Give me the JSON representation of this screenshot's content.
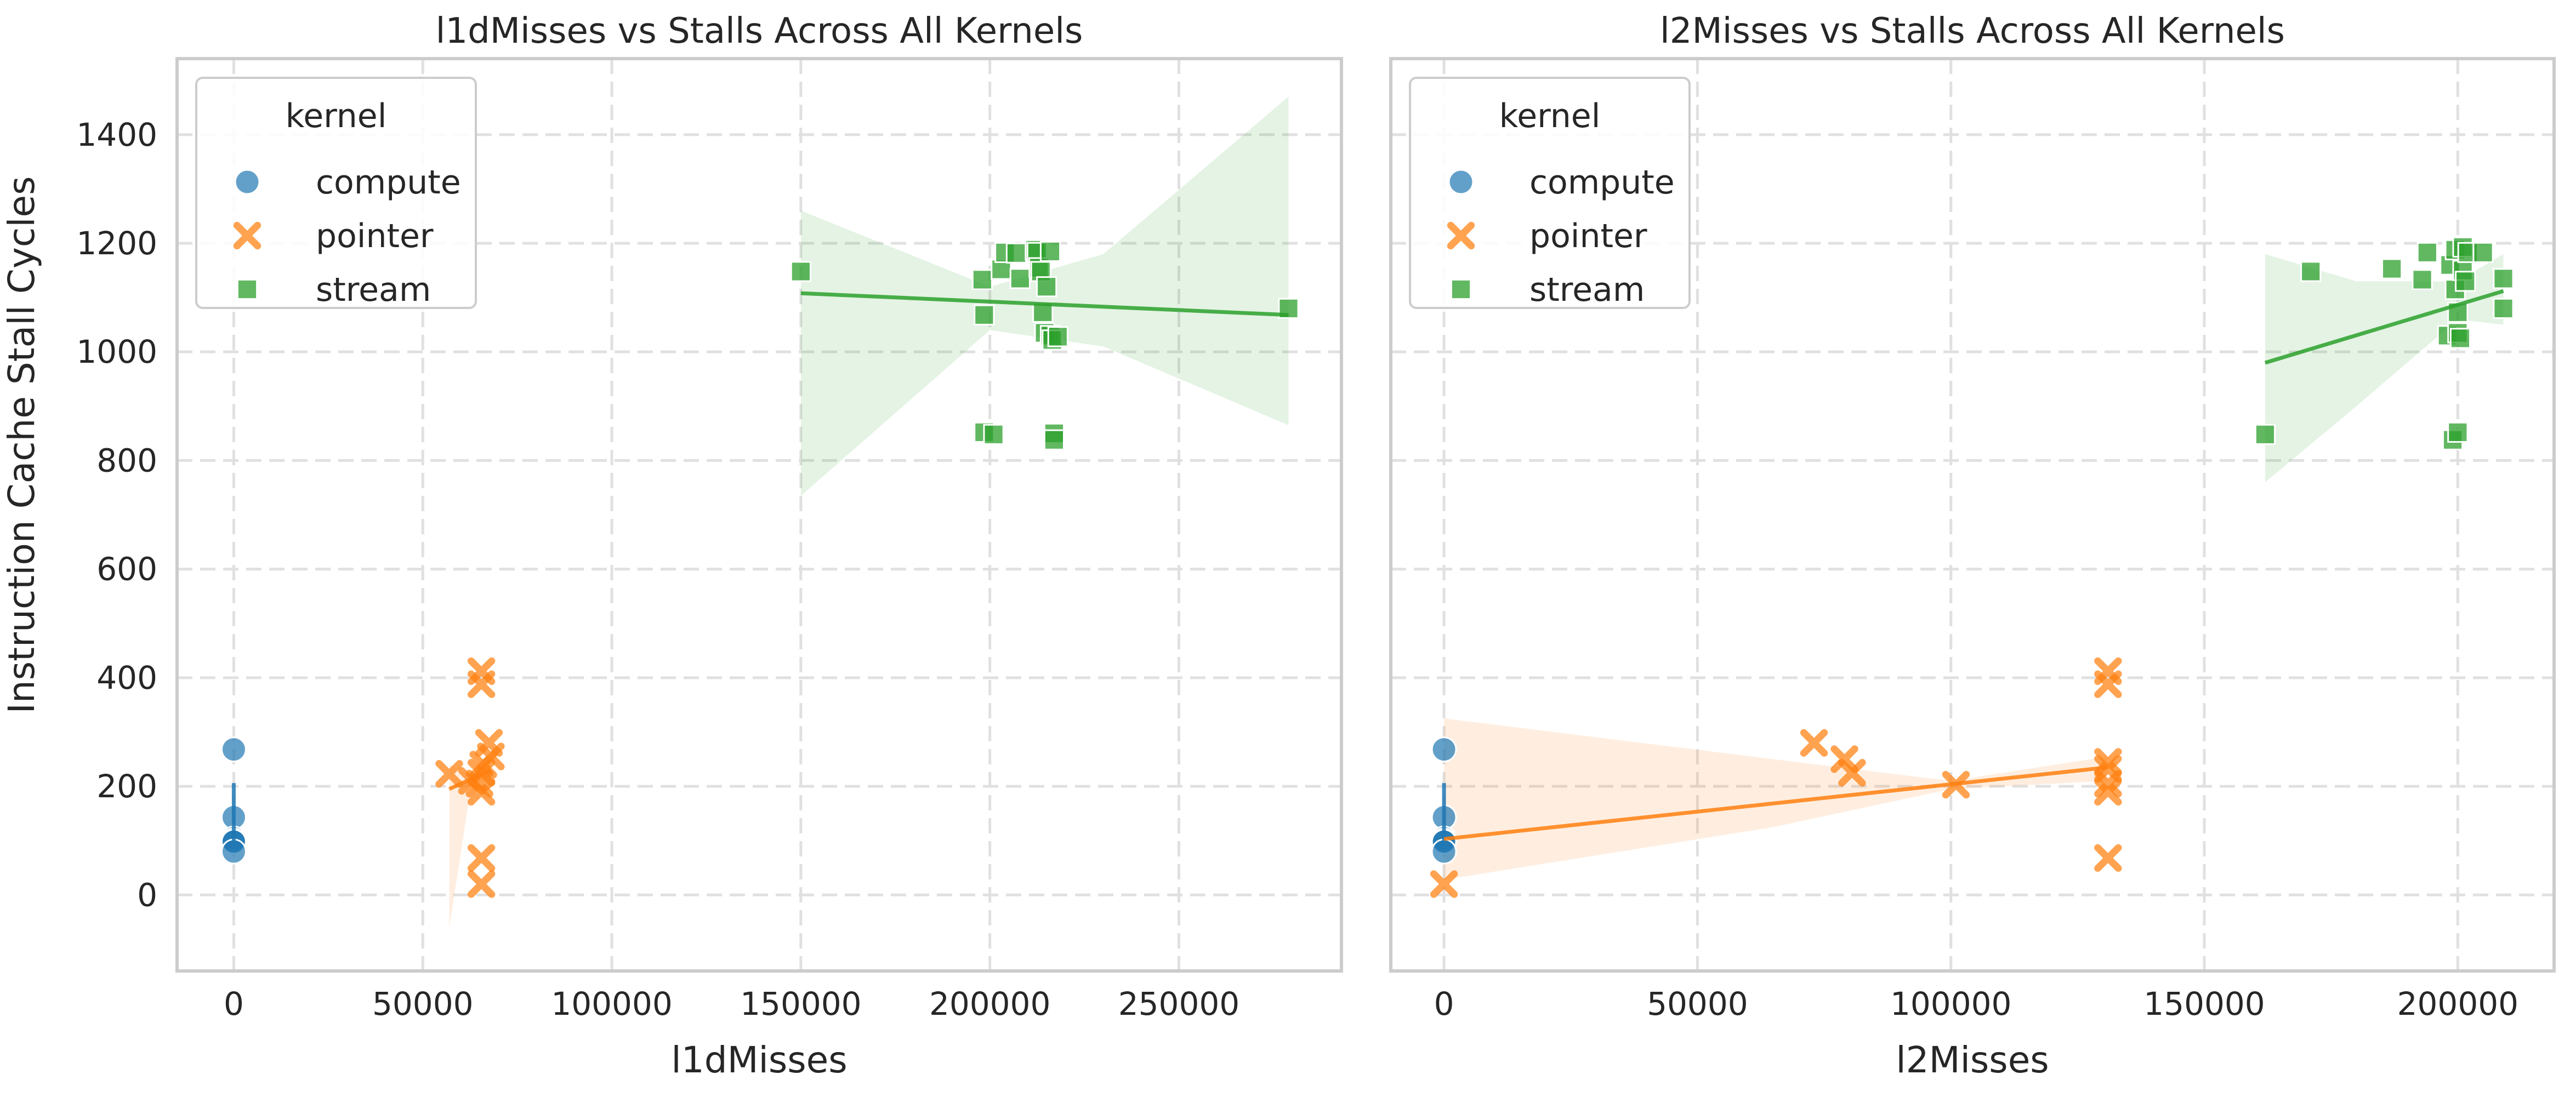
{
  "chart_data": [
    {
      "type": "scatter",
      "title": "l1dMisses vs Stalls Across All Kernels",
      "xlabel": "l1dMisses",
      "ylabel": "Instruction Cache Stall Cycles",
      "xlim": [
        -15000,
        293000
      ],
      "ylim": [
        -140,
        1540
      ],
      "xticks": [
        0,
        50000,
        100000,
        150000,
        200000,
        250000
      ],
      "xtick_labels": [
        "0",
        "50000",
        "100000",
        "150000",
        "200000",
        "250000"
      ],
      "yticks": [
        0,
        200,
        400,
        600,
        800,
        1000,
        1200,
        1400
      ],
      "ytick_labels": [
        "0",
        "200",
        "400",
        "600",
        "800",
        "1000",
        "1200",
        "1400"
      ],
      "grid": true,
      "legend": {
        "title": "kernel",
        "position": "top-left",
        "entries": [
          "compute",
          "pointer",
          "stream"
        ]
      },
      "series": [
        {
          "name": "compute",
          "color": "#1f77b4",
          "marker": "circle",
          "points": [
            [
              0,
              268
            ],
            [
              0,
              143
            ],
            [
              0,
              104
            ],
            [
              0,
              100
            ],
            [
              0,
              98
            ],
            [
              0,
              80
            ]
          ],
          "fit": {
            "line": [
              [
                0,
                100
              ],
              [
                0,
                206
              ]
            ],
            "band": []
          }
        },
        {
          "name": "pointer",
          "color": "#ff7f0e",
          "marker": "x",
          "points": [
            [
              65500,
              412
            ],
            [
              65500,
              388
            ],
            [
              67500,
              280
            ],
            [
              68000,
              255
            ],
            [
              66000,
              240
            ],
            [
              65500,
              225
            ],
            [
              57000,
              223
            ],
            [
              63000,
              210
            ],
            [
              65000,
              205
            ],
            [
              65500,
              190
            ],
            [
              65500,
              68
            ],
            [
              65500,
              20
            ]
          ],
          "fit": {
            "line": [
              [
                57000,
                195
              ],
              [
                68000,
                230
              ]
            ],
            "band": [
              [
                57000,
                240,
                -60
              ],
              [
                62000,
                222,
                165
              ],
              [
                65000,
                232,
                205
              ],
              [
                68000,
                262,
                215
              ]
            ]
          }
        },
        {
          "name": "stream",
          "color": "#2ca02c",
          "marker": "square",
          "points": [
            [
              150000,
              1148
            ],
            [
              198000,
              1133
            ],
            [
              198500,
              1068
            ],
            [
              198500,
              852
            ],
            [
              201000,
              848
            ],
            [
              203000,
              1152
            ],
            [
              204000,
              1183
            ],
            [
              207000,
              1182
            ],
            [
              208000,
              1135
            ],
            [
              212000,
              1188
            ],
            [
              212500,
              1183
            ],
            [
              213000,
              1155
            ],
            [
              213500,
              1148
            ],
            [
              214000,
              1073
            ],
            [
              214500,
              1035
            ],
            [
              215000,
              1120
            ],
            [
              216000,
              1185
            ],
            [
              216000,
              1030
            ],
            [
              216500,
              1022
            ],
            [
              217000,
              850
            ],
            [
              217000,
              838
            ],
            [
              218000,
              1028
            ],
            [
              279000,
              1080
            ]
          ],
          "fit": {
            "line": [
              [
                150000,
                1108
              ],
              [
                279000,
                1068
              ]
            ],
            "band": [
              [
                150000,
                1260,
                735
              ],
              [
                200000,
                1120,
                1040
              ],
              [
                230000,
                1180,
                1010
              ],
              [
                279000,
                1470,
                865
              ]
            ]
          }
        }
      ]
    },
    {
      "type": "scatter",
      "title": "l2Misses vs Stalls Across All Kernels",
      "xlabel": "l2Misses",
      "ylabel": "",
      "xlim": [
        -10500,
        219000
      ],
      "ylim": [
        -140,
        1540
      ],
      "xticks": [
        0,
        50000,
        100000,
        150000,
        200000
      ],
      "xtick_labels": [
        "0",
        "50000",
        "100000",
        "150000",
        "200000"
      ],
      "yticks": [
        0,
        200,
        400,
        600,
        800,
        1000,
        1200,
        1400
      ],
      "grid": true,
      "legend": {
        "title": "kernel",
        "position": "top-left",
        "entries": [
          "compute",
          "pointer",
          "stream"
        ]
      },
      "series": [
        {
          "name": "compute",
          "color": "#1f77b4",
          "marker": "circle",
          "points": [
            [
              0,
              268
            ],
            [
              0,
              143
            ],
            [
              0,
              104
            ],
            [
              0,
              100
            ],
            [
              0,
              98
            ],
            [
              0,
              80
            ]
          ],
          "fit": {
            "line": [
              [
                0,
                100
              ],
              [
                0,
                206
              ]
            ],
            "band": []
          }
        },
        {
          "name": "pointer",
          "color": "#ff7f0e",
          "marker": "x",
          "points": [
            [
              131000,
              412
            ],
            [
              131000,
              388
            ],
            [
              73000,
              280
            ],
            [
              79000,
              250
            ],
            [
              80500,
              225
            ],
            [
              101000,
              203
            ],
            [
              131000,
              245
            ],
            [
              131000,
              232
            ],
            [
              131000,
              205
            ],
            [
              131000,
              190
            ],
            [
              131000,
              68
            ],
            [
              0,
              20
            ]
          ],
          "fit": {
            "line": [
              [
                0,
                103
              ],
              [
                131000,
                235
              ]
            ],
            "band": [
              [
                0,
                325,
                28
              ],
              [
                65000,
                250,
                125
              ],
              [
                100000,
                210,
                195
              ],
              [
                131000,
                255,
                210
              ]
            ]
          }
        },
        {
          "name": "stream",
          "color": "#2ca02c",
          "marker": "square",
          "points": [
            [
              162000,
              848
            ],
            [
              171000,
              1148
            ],
            [
              187000,
              1153
            ],
            [
              193000,
              1133
            ],
            [
              194000,
              1183
            ],
            [
              198000,
              1030
            ],
            [
              198500,
              1160
            ],
            [
              199000,
              838
            ],
            [
              199500,
              1188
            ],
            [
              199500,
              1115
            ],
            [
              200000,
              852
            ],
            [
              200000,
              1073
            ],
            [
              200000,
              1035
            ],
            [
              200500,
              1025
            ],
            [
              201000,
              1193
            ],
            [
              201000,
              1150
            ],
            [
              201500,
              1130
            ],
            [
              202000,
              1183
            ],
            [
              205000,
              1183
            ],
            [
              209000,
              1135
            ],
            [
              209000,
              1080
            ]
          ],
          "fit": {
            "line": [
              [
                162000,
                980
              ],
              [
                209000,
                1112
              ]
            ],
            "band": [
              [
                162000,
                1180,
                760
              ],
              [
                180000,
                1130,
                900
              ],
              [
                200000,
                1130,
                1060
              ],
              [
                209000,
                1180,
                1050
              ]
            ]
          }
        }
      ]
    }
  ]
}
